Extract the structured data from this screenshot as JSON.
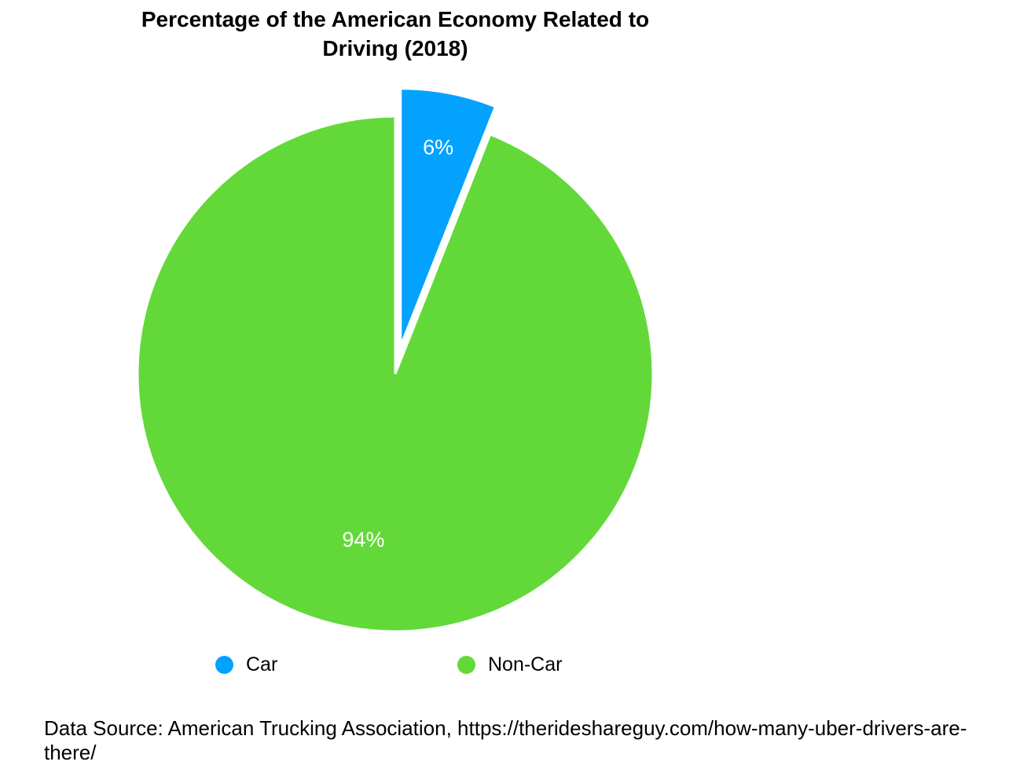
{
  "chart_data": {
    "type": "pie",
    "title": "Percentage of the American Economy Related to Driving (2018)",
    "slices": [
      {
        "label": "Car",
        "value": 6,
        "display": "6%",
        "color": "#03A2FF",
        "exploded": true
      },
      {
        "label": "Non-Car",
        "value": 94,
        "display": "94%",
        "color": "#62D939",
        "exploded": false
      }
    ],
    "legend_placement": "bottom"
  },
  "footer": {
    "source": "Data Source: American Trucking Association, https://therideshareguy.com/how-many-uber-drivers-are-there/"
  }
}
